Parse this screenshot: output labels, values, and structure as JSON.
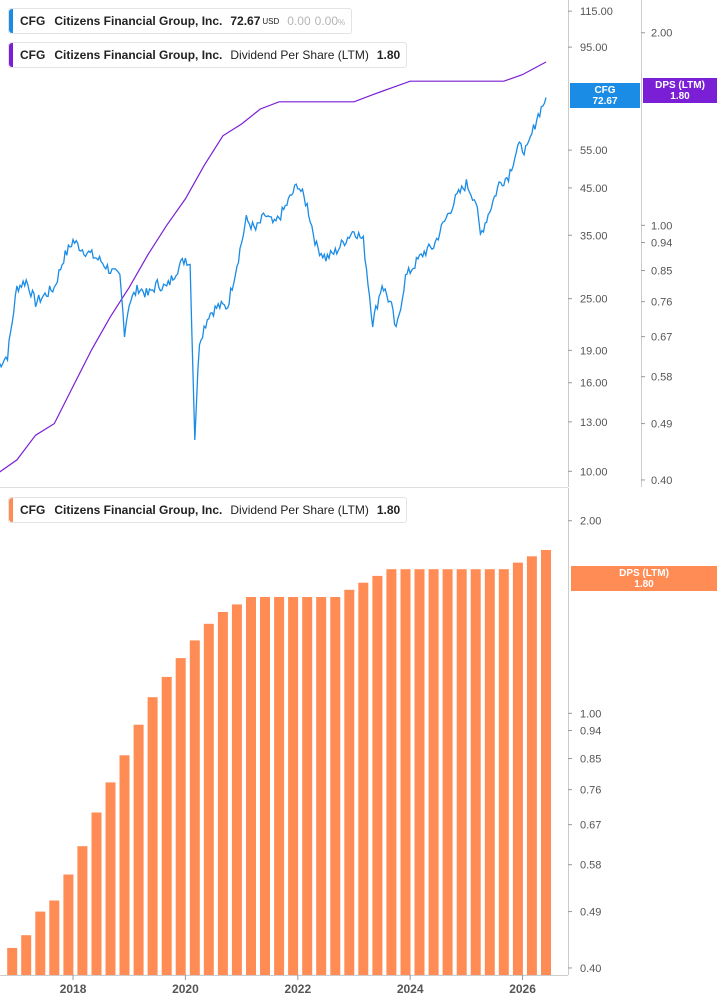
{
  "legend_price": {
    "ticker": "CFG",
    "name": "Citizens Financial Group, Inc.",
    "price": "72.67",
    "currency": "USD",
    "change": "0.00",
    "change_pct": "0.00",
    "pct_sign": "%"
  },
  "legend_dps_top": {
    "ticker": "CFG",
    "name": "Citizens Financial Group, Inc.",
    "metric": "Dividend Per Share (LTM)",
    "value": "1.80"
  },
  "legend_dps_bottom": {
    "ticker": "CFG",
    "name": "Citizens Financial Group, Inc.",
    "metric": "Dividend Per Share (LTM)",
    "value": "1.80"
  },
  "tags": {
    "price_label": "CFG",
    "price_value": "72.67",
    "dps_top_label": "DPS (LTM)",
    "dps_top_value": "1.80",
    "dps_bottom_label": "DPS (LTM)",
    "dps_bottom_value": "1.80"
  },
  "colors": {
    "price_line": "#1a8ce6",
    "dps_line": "#7b1fd6",
    "bars": "#ff8c55",
    "axis_text": "#555555",
    "grid": "#e6e6e6"
  },
  "chart_data": [
    {
      "type": "line",
      "series": [
        {
          "name": "CFG",
          "x": [
            "2016-09",
            "2016-11",
            "2017-01",
            "2017-03",
            "2017-05",
            "2017-07",
            "2017-09",
            "2017-11",
            "2018-01",
            "2018-03",
            "2018-05",
            "2018-07",
            "2018-09",
            "2018-11",
            "2018-12",
            "2019-01",
            "2019-03",
            "2019-05",
            "2019-07",
            "2019-09",
            "2019-11",
            "2020-01",
            "2020-02",
            "2020-03",
            "2020-04",
            "2020-06",
            "2020-08",
            "2020-10",
            "2020-12",
            "2021-02",
            "2021-04",
            "2021-06",
            "2021-08",
            "2021-10",
            "2021-12",
            "2022-01",
            "2022-03",
            "2022-05",
            "2022-07",
            "2022-09",
            "2022-11",
            "2023-01",
            "2023-03",
            "2023-05",
            "2023-07",
            "2023-09",
            "2023-10",
            "2023-12",
            "2024-02",
            "2024-04",
            "2024-06",
            "2024-08",
            "2024-10",
            "2024-11",
            "2025-01",
            "2025-03",
            "2025-04",
            "2025-06",
            "2025-08",
            "2025-10",
            "2025-12",
            "2026-02",
            "2026-04",
            "2026-06"
          ],
          "values": [
            17.5,
            18.5,
            26.5,
            27.5,
            24.5,
            25.5,
            26.5,
            31,
            34,
            32.5,
            31.5,
            30.5,
            29,
            28,
            21,
            24.5,
            26.5,
            25.5,
            27,
            26.5,
            29,
            31,
            30,
            12,
            20,
            23,
            24,
            24,
            30,
            38,
            36,
            39,
            37,
            40,
            44,
            46,
            41,
            33,
            31,
            32,
            34,
            36,
            34,
            22,
            27,
            24,
            21,
            28,
            30,
            32,
            33,
            37,
            41,
            43,
            46,
            42,
            35,
            40,
            46,
            48,
            56,
            55,
            65,
            72.67
          ]
        },
        {
          "name": "DPS (LTM)",
          "x": [
            "2016-09",
            "2017-01",
            "2017-05",
            "2017-09",
            "2018-01",
            "2018-05",
            "2018-09",
            "2019-01",
            "2019-05",
            "2019-09",
            "2020-01",
            "2020-05",
            "2020-09",
            "2021-01",
            "2021-05",
            "2021-09",
            "2022-01",
            "2022-05",
            "2022-09",
            "2023-01",
            "2023-05",
            "2023-09",
            "2024-01",
            "2024-05",
            "2024-09",
            "2025-01",
            "2025-05",
            "2025-09",
            "2026-01",
            "2026-06"
          ],
          "values": [
            0.41,
            0.43,
            0.47,
            0.49,
            0.56,
            0.64,
            0.72,
            0.8,
            0.9,
            1.0,
            1.1,
            1.24,
            1.38,
            1.44,
            1.52,
            1.56,
            1.56,
            1.56,
            1.56,
            1.56,
            1.6,
            1.64,
            1.68,
            1.68,
            1.68,
            1.68,
            1.68,
            1.68,
            1.72,
            1.8
          ]
        }
      ],
      "yscale": "log",
      "price_ticks": [
        10,
        13,
        16,
        19,
        25,
        35,
        45,
        55,
        95,
        115
      ],
      "price_tick_labels": [
        "10.00",
        "13.00",
        "16.00",
        "19.00",
        "25.00",
        "35.00",
        "45.00",
        "55.00",
        "95.00",
        "115.00"
      ],
      "price_range": [
        9.2,
        122
      ],
      "dps_ticks": [
        0.4,
        0.49,
        0.58,
        0.67,
        0.76,
        0.85,
        0.94,
        1.0,
        2.0
      ],
      "dps_tick_labels": [
        "0.40",
        "0.49",
        "0.58",
        "0.67",
        "0.76",
        "0.85",
        "0.94",
        "1.00",
        "2.00"
      ],
      "dps_range": [
        0.39,
        2.25
      ],
      "grid": false
    },
    {
      "type": "bar",
      "name": "DPS (LTM)",
      "x": [
        "2016-12",
        "2017-03",
        "2017-06",
        "2017-09",
        "2017-12",
        "2018-03",
        "2018-06",
        "2018-09",
        "2018-12",
        "2019-03",
        "2019-06",
        "2019-09",
        "2019-12",
        "2020-03",
        "2020-06",
        "2020-09",
        "2020-12",
        "2021-03",
        "2021-06",
        "2021-09",
        "2021-12",
        "2022-03",
        "2022-06",
        "2022-09",
        "2022-12",
        "2023-03",
        "2023-06",
        "2023-09",
        "2023-12",
        "2024-03",
        "2024-06",
        "2024-09",
        "2024-12",
        "2025-03",
        "2025-06",
        "2025-09",
        "2025-12",
        "2026-03",
        "2026-06"
      ],
      "values": [
        0.43,
        0.45,
        0.49,
        0.51,
        0.56,
        0.62,
        0.7,
        0.78,
        0.86,
        0.96,
        1.06,
        1.14,
        1.22,
        1.3,
        1.38,
        1.44,
        1.48,
        1.52,
        1.52,
        1.52,
        1.52,
        1.52,
        1.52,
        1.52,
        1.56,
        1.6,
        1.64,
        1.68,
        1.68,
        1.68,
        1.68,
        1.68,
        1.68,
        1.68,
        1.68,
        1.68,
        1.72,
        1.76,
        1.8
      ],
      "yscale": "log",
      "y_ticks": [
        0.4,
        0.49,
        0.58,
        0.67,
        0.76,
        0.85,
        0.94,
        1.0,
        2.0
      ],
      "y_tick_labels": [
        "0.40",
        "0.49",
        "0.58",
        "0.67",
        "0.76",
        "0.85",
        "0.94",
        "1.00",
        "2.00"
      ],
      "y_range": [
        0.39,
        2.25
      ],
      "x_ticks": [
        "2018",
        "2020",
        "2022",
        "2024",
        "2026"
      ],
      "grid": false
    }
  ]
}
